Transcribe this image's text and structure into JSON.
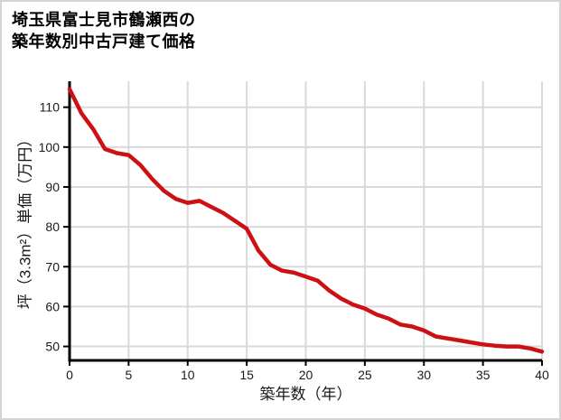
{
  "card": {
    "background": "#ffffff",
    "border_color": "#d4d4d4"
  },
  "title": {
    "line1": "埼玉県富士見市鶴瀬西の",
    "line2": "築年数別中古戸建て価格"
  },
  "chart_data": {
    "type": "line",
    "title": "埼玉県富士見市鶴瀬西の築年数別中古戸建て価格",
    "xlabel": "築年数（年）",
    "ylabel": "坪（3.3m²）単価（万円）",
    "x": [
      0,
      1,
      2,
      3,
      4,
      5,
      6,
      7,
      8,
      9,
      10,
      11,
      12,
      13,
      14,
      15,
      16,
      17,
      18,
      19,
      20,
      21,
      22,
      23,
      24,
      25,
      26,
      27,
      28,
      29,
      30,
      31,
      32,
      33,
      34,
      35,
      36,
      37,
      38,
      39,
      40
    ],
    "series": [
      {
        "color": "#cc1014",
        "values": [
          114.5,
          108.5,
          104.5,
          99.5,
          98.5,
          98,
          95.5,
          92,
          89,
          87,
          86,
          86.5,
          85,
          83.5,
          81.5,
          79.5,
          74,
          70.5,
          69,
          68.5,
          67.5,
          66.5,
          64,
          62,
          60.5,
          59.5,
          58,
          57,
          55.5,
          55,
          54,
          52.5,
          52,
          51.5,
          51,
          50.5,
          50.2,
          50,
          50,
          49.5,
          48.7
        ]
      }
    ],
    "xlim": [
      0,
      40
    ],
    "ylim": [
      46.5,
      116.5
    ],
    "x_ticks": [
      0,
      5,
      10,
      15,
      20,
      25,
      30,
      35,
      40
    ],
    "y_ticks": [
      50,
      60,
      70,
      80,
      90,
      100,
      110
    ],
    "grid": true,
    "grid_color": "#d9d9d9",
    "axis_color": "#000000",
    "tick_label_color": "#1a1a1a",
    "tick_label_size": 14,
    "legend": "none"
  }
}
